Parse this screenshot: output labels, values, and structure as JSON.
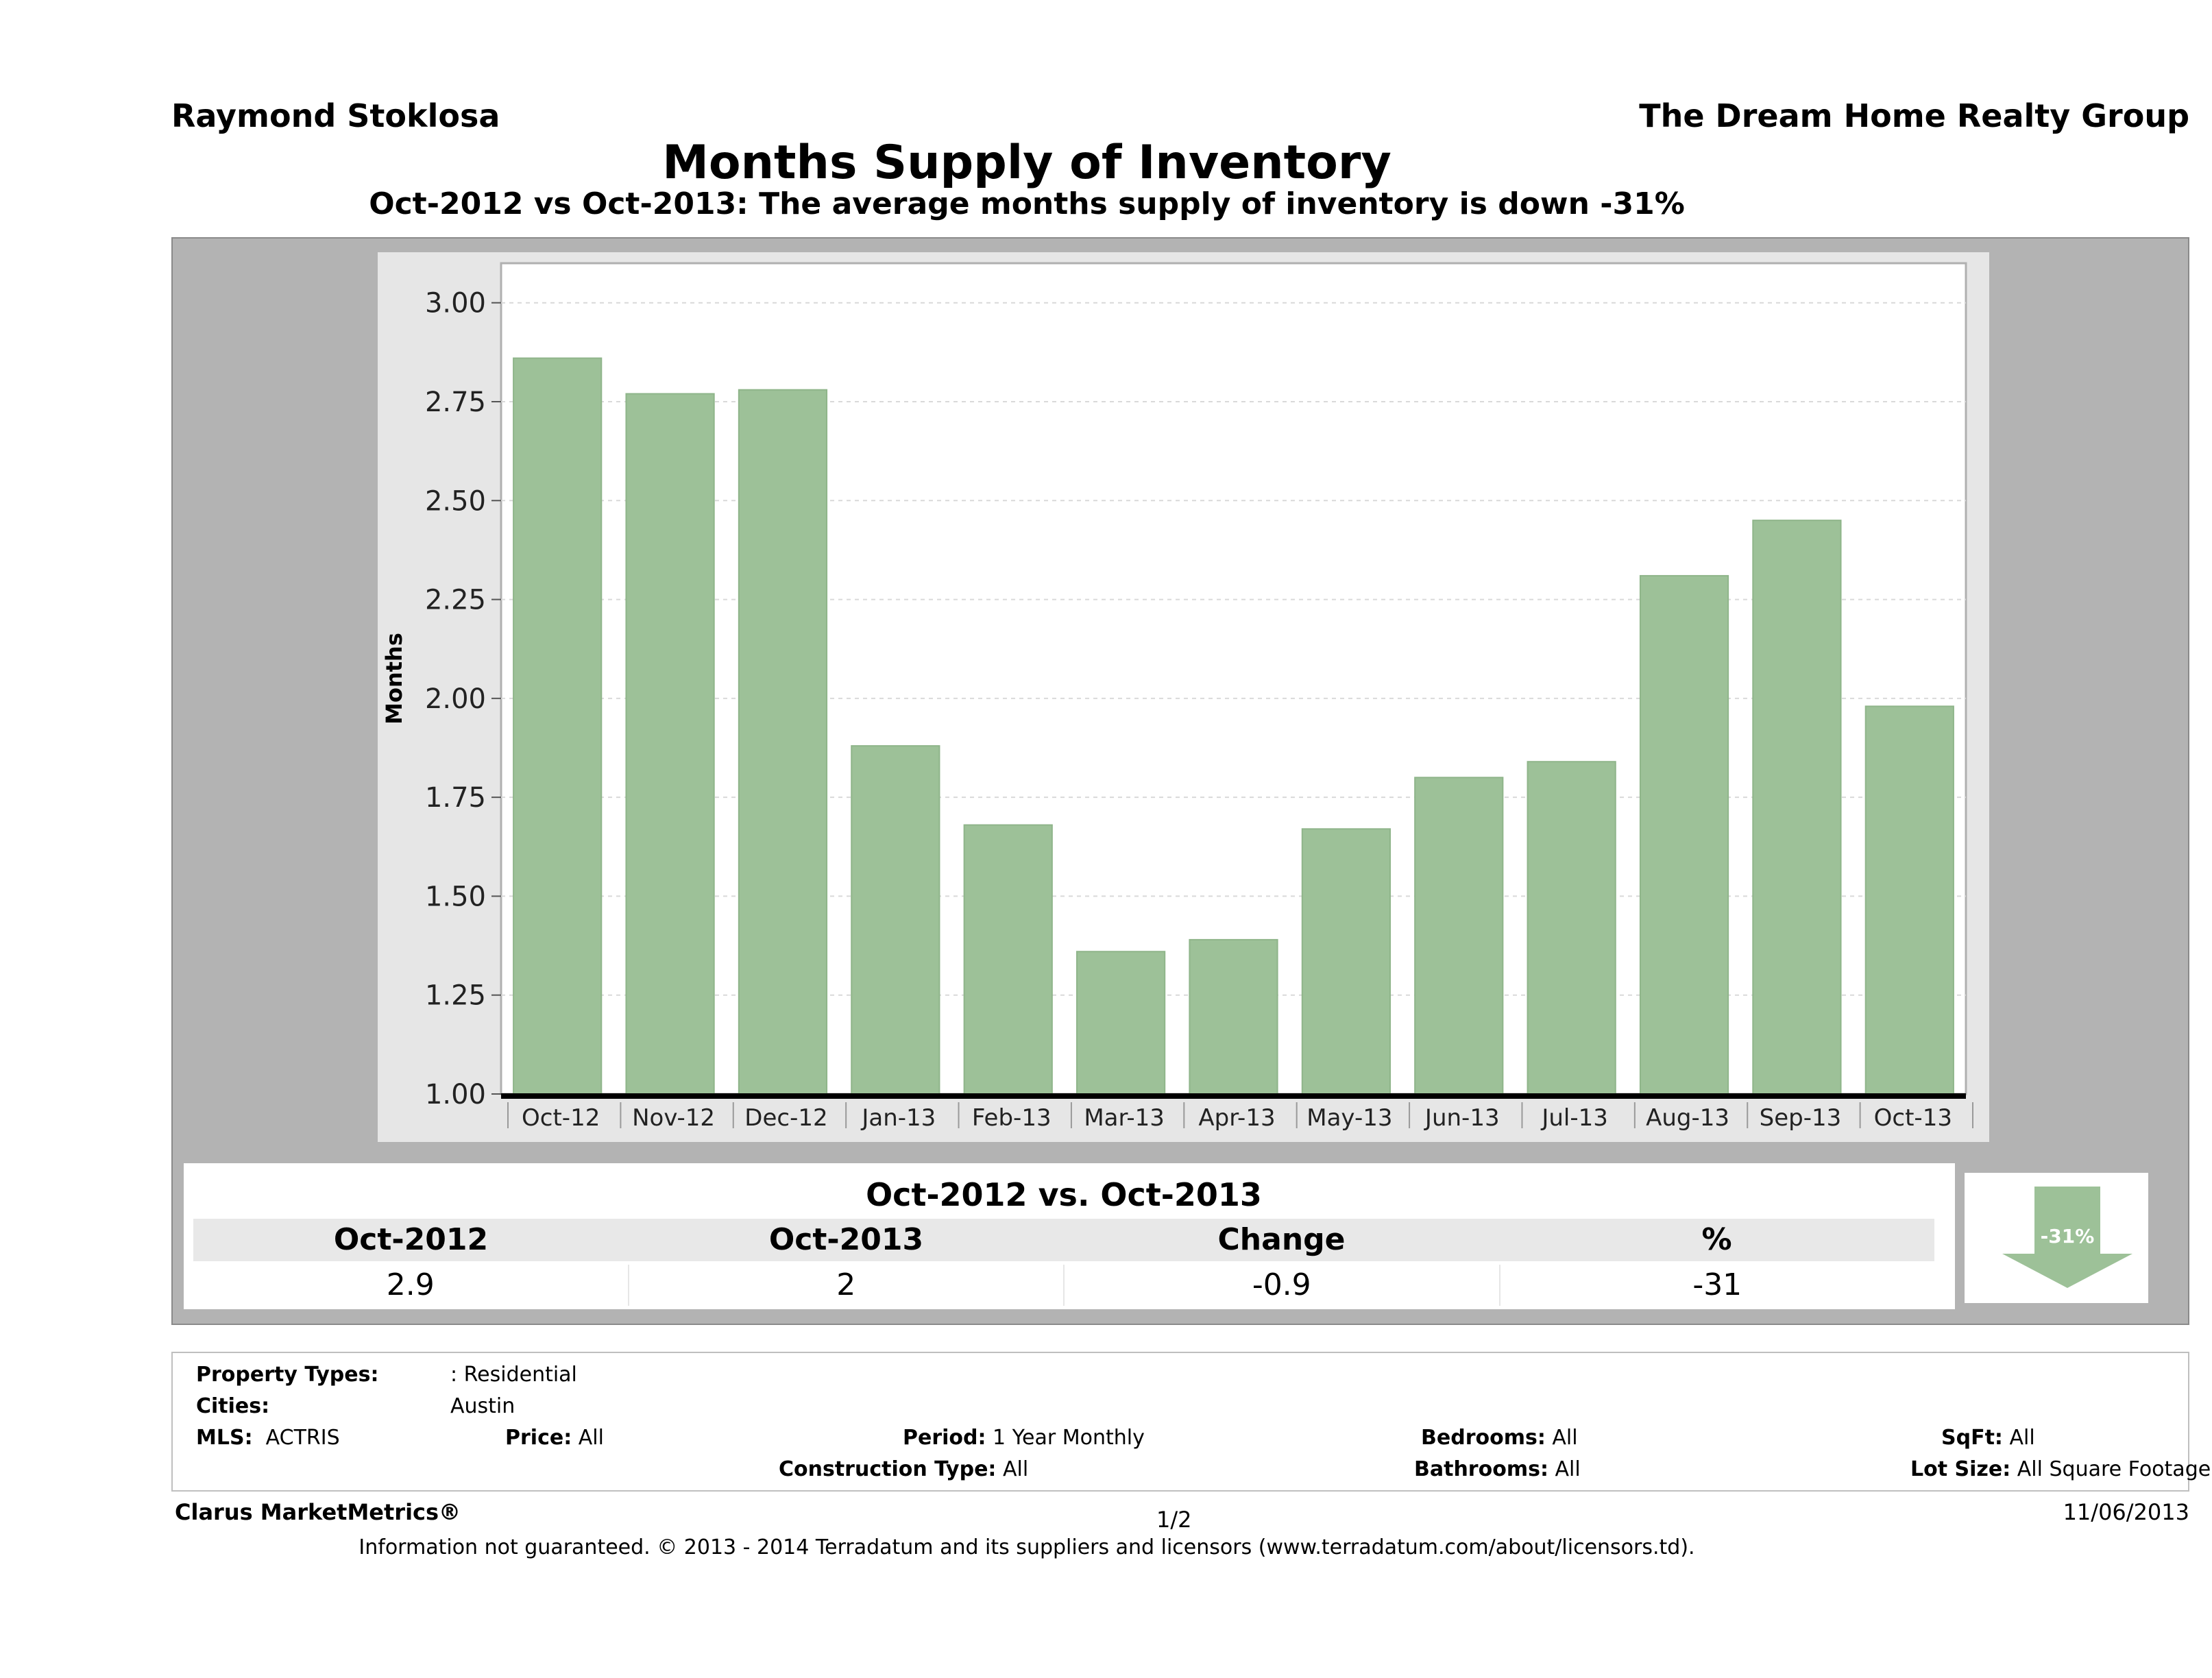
{
  "header": {
    "agent": "Raymond Stoklosa",
    "company": "The Dream Home Realty Group",
    "title": "Months Supply of Inventory",
    "subtitle": "Oct-2012 vs Oct-2013: The average months supply of inventory is down -31%"
  },
  "chart_data": {
    "type": "bar",
    "categories": [
      "Oct-12",
      "Nov-12",
      "Dec-12",
      "Jan-13",
      "Feb-13",
      "Mar-13",
      "Apr-13",
      "May-13",
      "Jun-13",
      "Jul-13",
      "Aug-13",
      "Sep-13",
      "Oct-13"
    ],
    "values": [
      2.86,
      2.77,
      2.78,
      1.88,
      1.68,
      1.36,
      1.39,
      1.67,
      1.8,
      1.84,
      2.31,
      2.45,
      1.98
    ],
    "ylabel": "Months",
    "ylim": [
      1.0,
      3.1
    ],
    "yticks": [
      "1.00",
      "1.25",
      "1.50",
      "1.75",
      "2.00",
      "2.25",
      "2.50",
      "2.75",
      "3.00"
    ],
    "bar_color": "#9dc198",
    "grid": true
  },
  "summary": {
    "heading": "Oct-2012 vs. Oct-2013",
    "labels": [
      "Oct-2012",
      "Oct-2013",
      "Change",
      "%"
    ],
    "values": [
      "2.9",
      "2",
      "-0.9",
      "-31"
    ],
    "badge": "-31%",
    "badge_color": "#9dc198"
  },
  "details": {
    "property_types_label": "Property Types:",
    "property_types_value": ": Residential",
    "cities_label": "Cities:",
    "cities_value": "Austin",
    "mls_label": "MLS:",
    "mls_value": "ACTRIS",
    "price_label": "Price:",
    "price_value": "All",
    "period_label": "Period:",
    "period_value": "1 Year Monthly",
    "construction_label": "Construction Type:",
    "construction_value": "All",
    "bedrooms_label": "Bedrooms:",
    "bedrooms_value": "All",
    "bathrooms_label": "Bathrooms:",
    "bathrooms_value": "All",
    "sqft_label": "SqFt:",
    "sqft_value": "All",
    "lotsize_label": "Lot Size:",
    "lotsize_value": "All Square Footage"
  },
  "footer": {
    "brand": "Clarus MarketMetrics®",
    "page": "1/2",
    "date": "11/06/2013",
    "disclaimer": "Information not guaranteed. © 2013 - 2014 Terradatum and its suppliers and licensors (www.terradatum.com/about/licensors.td)."
  }
}
